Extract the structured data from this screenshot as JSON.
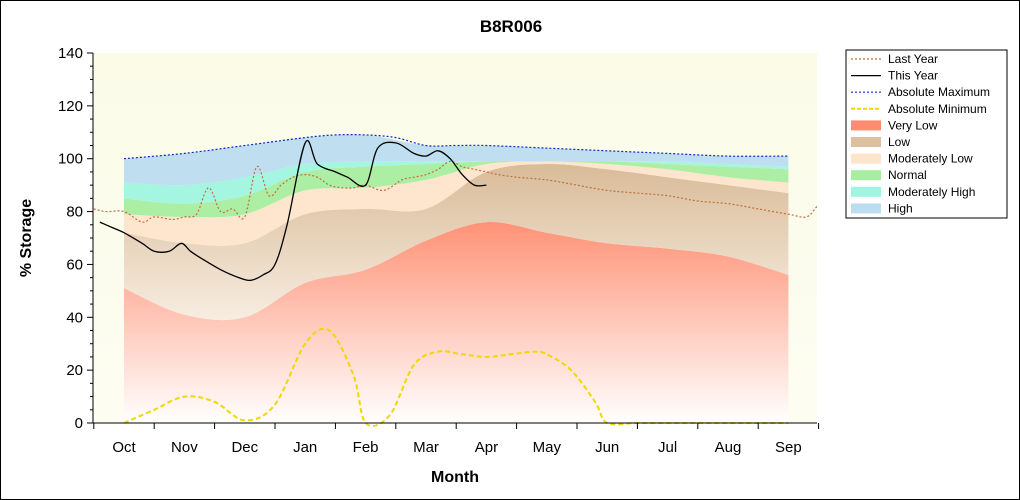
{
  "chart_data": {
    "type": "area",
    "title": "B8R006",
    "xlabel": "Month",
    "ylabel": "% Storage",
    "ylim": [
      0,
      140
    ],
    "yticks": [
      0,
      20,
      40,
      60,
      80,
      100,
      120,
      140
    ],
    "categories": [
      "Oct",
      "Nov",
      "Dec",
      "Jan",
      "Feb",
      "Mar",
      "Apr",
      "May",
      "Jun",
      "Jul",
      "Aug",
      "Sep"
    ],
    "legend_position": "right",
    "bands": [
      {
        "name": "Very Low",
        "color": "#ff8c70",
        "lower": [
          0,
          0,
          0,
          0,
          0,
          0,
          0,
          0,
          0,
          0,
          0,
          0
        ],
        "upper": [
          51,
          41,
          40,
          53,
          58,
          69,
          76,
          72,
          68,
          66,
          63,
          56
        ]
      },
      {
        "name": "Low",
        "color": "#ddc0a0",
        "lower": [
          51,
          41,
          40,
          53,
          58,
          69,
          76,
          72,
          68,
          66,
          63,
          56
        ],
        "upper": [
          72,
          68,
          68,
          79,
          81,
          81,
          95,
          98,
          96,
          93,
          90,
          87
        ]
      },
      {
        "name": "Moderately Low",
        "color": "#fde4cc",
        "lower": [
          72,
          68,
          68,
          79,
          81,
          81,
          95,
          98,
          96,
          93,
          90,
          87
        ],
        "upper": [
          79,
          78,
          79,
          88,
          89,
          92,
          98,
          99,
          98,
          96,
          93,
          91
        ]
      },
      {
        "name": "Normal",
        "color": "#a8eea0",
        "lower": [
          79,
          78,
          79,
          88,
          89,
          92,
          98,
          99,
          98,
          96,
          93,
          91
        ],
        "upper": [
          85,
          83,
          86,
          95,
          97,
          98,
          99,
          99,
          99,
          98,
          97,
          96
        ]
      },
      {
        "name": "Moderately High",
        "color": "#a0f5e0",
        "lower": [
          85,
          83,
          86,
          95,
          97,
          98,
          99,
          99,
          99,
          98,
          97,
          96
        ],
        "upper": [
          91,
          90,
          93,
          98,
          99,
          99,
          99,
          99,
          99,
          99,
          98,
          97
        ]
      },
      {
        "name": "High",
        "color": "#bcdcf0",
        "lower": [
          91,
          90,
          93,
          98,
          99,
          99,
          99,
          99,
          99,
          99,
          98,
          97
        ],
        "upper": [
          100,
          102,
          105,
          108,
          109,
          105,
          105,
          104,
          103,
          102,
          101,
          101
        ]
      }
    ],
    "series": [
      {
        "name": "Last Year",
        "color": "#c0703a",
        "style": "dotted",
        "x": [
          -0.5,
          -0.3,
          0,
          0.3,
          0.5,
          0.8,
          1,
          1.2,
          1.4,
          1.6,
          1.8,
          2,
          2.2,
          2.4,
          2.6,
          2.8,
          3,
          3.2,
          3.4,
          3.6,
          3.8,
          4,
          4.3,
          4.6,
          4.8,
          5,
          5.2,
          5.4,
          5.6,
          5.8,
          6,
          6.2,
          6.5,
          7,
          7.5,
          8,
          8.5,
          9,
          9.5,
          10,
          10.5,
          11,
          11.3,
          11.5
        ],
        "y": [
          81,
          80,
          80,
          76,
          78,
          77,
          78,
          79,
          89,
          80,
          81,
          78,
          97,
          86,
          90,
          93,
          94,
          93,
          90,
          89,
          89,
          90,
          88,
          92,
          93,
          94,
          96,
          99,
          97,
          96,
          95,
          94,
          93,
          92,
          90,
          88,
          87,
          86,
          84,
          83,
          81,
          79,
          78,
          82
        ]
      },
      {
        "name": "This Year",
        "color": "#000000",
        "style": "solid",
        "x": [
          -0.4,
          -0.2,
          0,
          0.3,
          0.5,
          0.75,
          0.95,
          1.1,
          1.3,
          1.6,
          1.9,
          2.1,
          2.3,
          2.5,
          2.7,
          3,
          3.2,
          3.5,
          3.7,
          4,
          4.2,
          4.5,
          4.8,
          5,
          5.2,
          5.4,
          5.6,
          5.8,
          6
        ],
        "y": [
          76,
          74,
          72,
          68,
          65,
          65,
          68,
          65,
          62,
          58,
          55,
          54,
          56,
          60,
          75,
          106,
          98,
          95,
          93,
          90,
          104,
          106,
          102,
          101,
          103,
          100,
          94,
          90,
          90
        ]
      },
      {
        "name": "Absolute Maximum",
        "color": "#1028c0",
        "style": "dotted",
        "x": [
          0,
          1,
          2,
          3,
          3.5,
          4,
          4.5,
          5,
          5.5,
          6,
          7,
          8,
          9,
          10,
          11
        ],
        "y": [
          100,
          102,
          105,
          108,
          109,
          109,
          108,
          105,
          105,
          105,
          104,
          103,
          102,
          101,
          101
        ]
      },
      {
        "name": "Absolute Minimum",
        "color": "#f0d800",
        "style": "dashed",
        "x": [
          0,
          0.5,
          1,
          1.5,
          2,
          2.5,
          3,
          3.4,
          3.8,
          4,
          4.4,
          4.8,
          5.2,
          5.6,
          6,
          6.4,
          6.8,
          7,
          7.4,
          7.8,
          8,
          8.5,
          9,
          9.5,
          10,
          10.5,
          11
        ],
        "y": [
          0,
          5,
          10,
          8,
          1,
          7,
          30,
          35,
          18,
          0,
          3,
          22,
          27,
          26,
          25,
          26,
          27,
          26,
          20,
          8,
          0,
          0,
          0,
          0,
          0,
          0,
          0
        ]
      }
    ],
    "legend": [
      {
        "label": "Last Year",
        "kind": "line",
        "color": "#c0703a",
        "dash": "2,2"
      },
      {
        "label": "This Year",
        "kind": "line",
        "color": "#000000",
        "dash": ""
      },
      {
        "label": "Absolute Maximum",
        "kind": "line",
        "color": "#1028c0",
        "dash": "2,2"
      },
      {
        "label": "Absolute Minimum",
        "kind": "line",
        "color": "#f0d800",
        "dash": "4,2"
      },
      {
        "label": "Very Low",
        "kind": "fill",
        "color": "#ff8c70"
      },
      {
        "label": "Low",
        "kind": "fill",
        "color": "#ddc0a0"
      },
      {
        "label": "Moderately Low",
        "kind": "fill",
        "color": "#fde4cc"
      },
      {
        "label": "Normal",
        "kind": "fill",
        "color": "#a8eea0"
      },
      {
        "label": "Moderately High",
        "kind": "fill",
        "color": "#a0f5e0"
      },
      {
        "label": "High",
        "kind": "fill",
        "color": "#bcdcf0"
      }
    ]
  }
}
